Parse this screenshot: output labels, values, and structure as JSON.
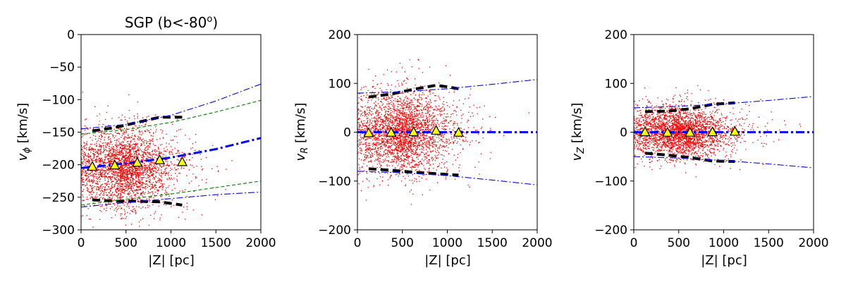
{
  "chart_data": [
    {
      "type": "scatter",
      "title": "SGP (b<-80",
      "title_sup": "o",
      "title_end": ")",
      "xlabel": "|Z| [pc]",
      "ylabel_main": "v",
      "ylabel_sub": "ϕ",
      "ylabel_unit": " [km/s]",
      "xlim": [
        0,
        2000
      ],
      "ylim": [
        -300,
        0
      ],
      "xticks": [
        0,
        500,
        1000,
        1500,
        2000
      ],
      "yticks": [
        0,
        -50,
        -100,
        -150,
        -200,
        -250,
        -300
      ],
      "ytick_labels": [
        "0",
        "−50",
        "−100",
        "−150",
        "−200",
        "−250",
        "−300"
      ],
      "scatter": {
        "color": "#ff0000",
        "x_center": 430,
        "x_spread": 260,
        "y_center": -205,
        "y_spread": 30,
        "n": 3000
      },
      "triangles": {
        "x": [
          125,
          375,
          625,
          875,
          1125
        ],
        "y": [
          -203,
          -201,
          -197,
          -193,
          -196
        ]
      },
      "series": [
        {
          "style": "black-dash",
          "x": [
            125,
            375,
            625,
            875,
            1125
          ],
          "y": [
            -148,
            -143,
            -135,
            -127,
            -127
          ]
        },
        {
          "style": "black-dash",
          "x": [
            125,
            375,
            625,
            875,
            1125
          ],
          "y": [
            -254,
            -256,
            -256,
            -257,
            -262
          ]
        },
        {
          "style": "blue-dashdot-thick",
          "x": [
            0,
            500,
            1000,
            1500,
            2000
          ],
          "y": [
            -205,
            -198,
            -189,
            -176,
            -159
          ]
        },
        {
          "style": "blue-dashdot-thin",
          "x": [
            0,
            500,
            1000,
            1500,
            2000
          ],
          "y": [
            -145,
            -138,
            -124,
            -102,
            -76
          ]
        },
        {
          "style": "blue-dashdot-thin",
          "x": [
            0,
            500,
            1000,
            1500,
            2000
          ],
          "y": [
            -265,
            -258,
            -252,
            -246,
            -242
          ]
        },
        {
          "style": "blue-dashdot-thin",
          "x": [
            0,
            2000
          ],
          "y": [
            0,
            0
          ]
        },
        {
          "style": "green-dash",
          "x": [
            0,
            500,
            1000,
            1500,
            2000
          ],
          "y": [
            -153,
            -146,
            -135,
            -119,
            -101
          ]
        },
        {
          "style": "green-dash",
          "x": [
            0,
            500,
            1000,
            1500,
            2000
          ],
          "y": [
            -262,
            -253,
            -245,
            -235,
            -225
          ]
        }
      ]
    },
    {
      "type": "scatter",
      "title": "",
      "xlabel": "|Z| [pc]",
      "ylabel_main": "v",
      "ylabel_sub": "R",
      "ylabel_unit": " [km/s]",
      "xlim": [
        0,
        2000
      ],
      "ylim": [
        -200,
        200
      ],
      "xticks": [
        0,
        500,
        1000,
        1500,
        2000
      ],
      "yticks": [
        200,
        100,
        0,
        -100,
        -200
      ],
      "ytick_labels": [
        "200",
        "100",
        "0",
        "−100",
        "−200"
      ],
      "scatter": {
        "color": "#ff0000",
        "x_center": 430,
        "x_spread": 260,
        "y_center": 0,
        "y_spread": 42,
        "n": 3000
      },
      "triangles": {
        "x": [
          125,
          375,
          625,
          875,
          1125
        ],
        "y": [
          -2,
          -1,
          0,
          3,
          -1
        ]
      },
      "series": [
        {
          "style": "black-dash",
          "x": [
            125,
            375,
            625,
            875,
            1000,
            1125
          ],
          "y": [
            72,
            78,
            88,
            96,
            93,
            89
          ]
        },
        {
          "style": "black-dash",
          "x": [
            125,
            375,
            625,
            875,
            1125
          ],
          "y": [
            -75,
            -78,
            -82,
            -85,
            -88
          ]
        },
        {
          "style": "blue-dashdot-thick",
          "x": [
            0,
            2000
          ],
          "y": [
            0,
            0
          ]
        },
        {
          "style": "blue-dashdot-thin",
          "x": [
            0,
            500,
            1000,
            1500,
            2000
          ],
          "y": [
            80,
            83,
            89,
            98,
            108
          ]
        },
        {
          "style": "blue-dashdot-thin",
          "x": [
            0,
            500,
            1000,
            1500,
            2000
          ],
          "y": [
            -80,
            -83,
            -89,
            -98,
            -108
          ]
        }
      ]
    },
    {
      "type": "scatter",
      "title": "",
      "xlabel": "|Z| [pc]",
      "ylabel_main": "v",
      "ylabel_sub": "Z",
      "ylabel_unit": " [km/s]",
      "xlim": [
        0,
        2000
      ],
      "ylim": [
        -200,
        200
      ],
      "xticks": [
        0,
        500,
        1000,
        1500,
        2000
      ],
      "yticks": [
        200,
        100,
        0,
        -100,
        -200
      ],
      "ytick_labels": [
        "200",
        "100",
        "0",
        "−100",
        "−200"
      ],
      "scatter": {
        "color": "#ff0000",
        "x_center": 430,
        "x_spread": 260,
        "y_center": 0,
        "y_spread": 26,
        "n": 3000
      },
      "triangles": {
        "x": [
          125,
          375,
          625,
          875,
          1125
        ],
        "y": [
          0,
          -1,
          -1,
          0,
          1
        ]
      },
      "series": [
        {
          "style": "black-dash",
          "x": [
            125,
            375,
            625,
            875,
            1125
          ],
          "y": [
            42,
            43,
            48,
            57,
            60
          ]
        },
        {
          "style": "black-dash",
          "x": [
            125,
            375,
            625,
            875,
            1125
          ],
          "y": [
            -43,
            -47,
            -52,
            -59,
            -60
          ]
        },
        {
          "style": "blue-dashdot-thick",
          "x": [
            0,
            2000
          ],
          "y": [
            0,
            0
          ]
        },
        {
          "style": "blue-dashdot-thin",
          "x": [
            0,
            500,
            1000,
            1500,
            2000
          ],
          "y": [
            50,
            53,
            58,
            65,
            73
          ]
        },
        {
          "style": "blue-dashdot-thin",
          "x": [
            0,
            500,
            1000,
            1500,
            2000
          ],
          "y": [
            -50,
            -53,
            -58,
            -65,
            -73
          ]
        }
      ]
    }
  ]
}
